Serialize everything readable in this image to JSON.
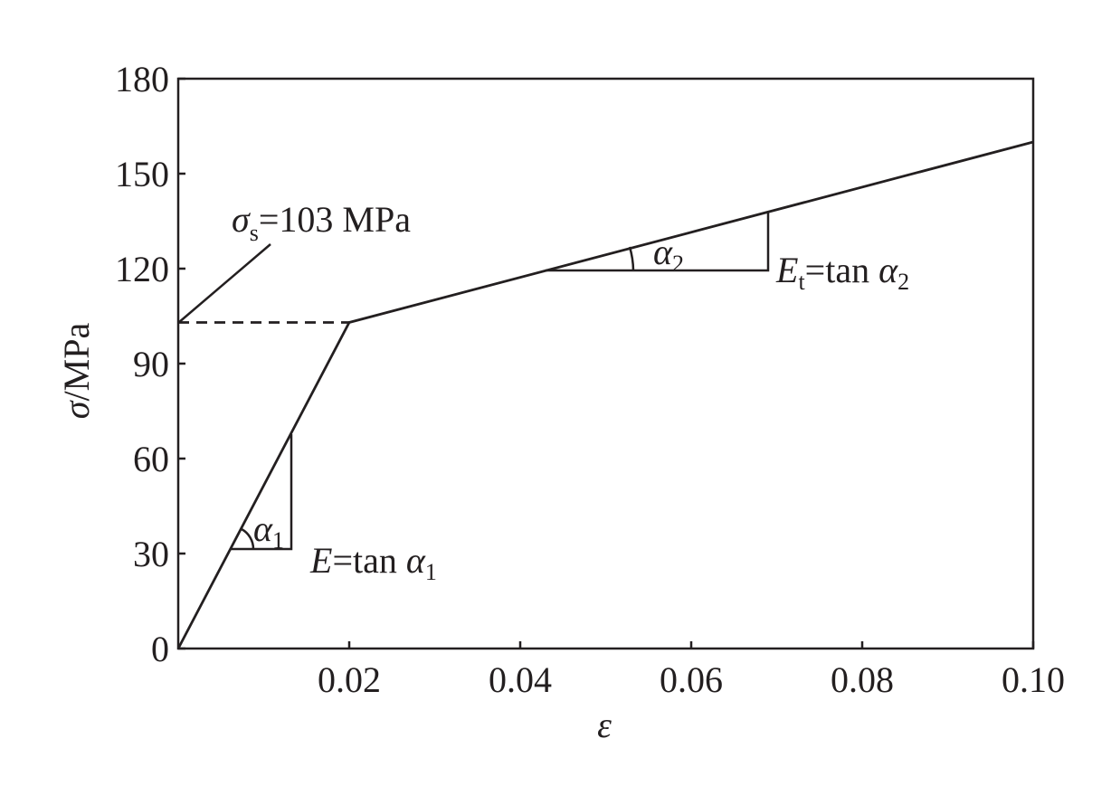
{
  "chart_data": {
    "type": "line",
    "x_label": "ε",
    "y_label": {
      "symbol": "σ",
      "text": "/MPa"
    },
    "series": [
      {
        "color": "#231f20",
        "x": [
          0,
          0.02,
          0.1
        ],
        "values": [
          0,
          103,
          160
        ]
      },
      {
        "color": "#231f20",
        "dashed": true,
        "x": [
          0,
          0.02
        ],
        "values": [
          103,
          103
        ]
      }
    ],
    "xlim": [
      0,
      0.1
    ],
    "ylim": [
      0,
      180
    ],
    "xticks": [
      0.02,
      0.04,
      0.06,
      0.08,
      {
        "value": 0.1,
        "label": "0.10"
      }
    ],
    "yticks": [
      0,
      30,
      60,
      90,
      120,
      150,
      180
    ],
    "annotations": {
      "yield": {
        "symbol": "σ",
        "subscript": "s",
        "text": "=103 MPa"
      },
      "modulus": {
        "symbol": "E",
        "text": "=tan ",
        "angle": "α",
        "subscript": "1"
      },
      "tangent": {
        "symbol": "E",
        "subscript": "t",
        "text": "=tan ",
        "angle": "α",
        "angle_subscript": "2"
      },
      "alpha1": {
        "symbol": "α",
        "subscript": "1"
      },
      "alpha2": {
        "symbol": "α",
        "subscript": "2"
      }
    }
  }
}
